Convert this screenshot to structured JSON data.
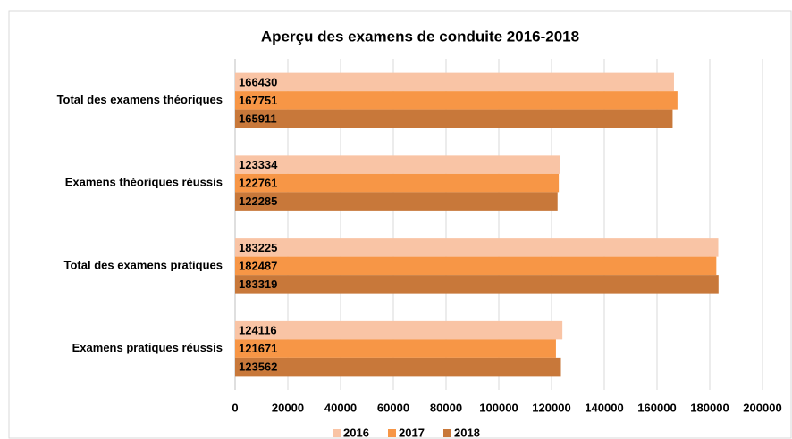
{
  "chart_data": {
    "type": "bar",
    "orientation": "horizontal",
    "title": "Aperçu des examens de conduite 2016-2018",
    "categories": [
      "Total des examens théoriques",
      "Examens théoriques réussis",
      "Total des examens pratiques",
      "Examens pratiques réussis"
    ],
    "series": [
      {
        "name": "2016",
        "color": "#f9c4a5",
        "values": [
          166430,
          123334,
          183225,
          124116
        ]
      },
      {
        "name": "2017",
        "color": "#f79646",
        "values": [
          167751,
          122761,
          182487,
          121671
        ]
      },
      {
        "name": "2018",
        "color": "#c8783a",
        "values": [
          165911,
          122285,
          183319,
          123562
        ]
      }
    ],
    "xlim": [
      0,
      200000
    ],
    "xticks": [
      0,
      20000,
      40000,
      60000,
      80000,
      100000,
      120000,
      140000,
      160000,
      180000,
      200000
    ],
    "grid": true,
    "legend": "bottom",
    "data_labels": true
  }
}
